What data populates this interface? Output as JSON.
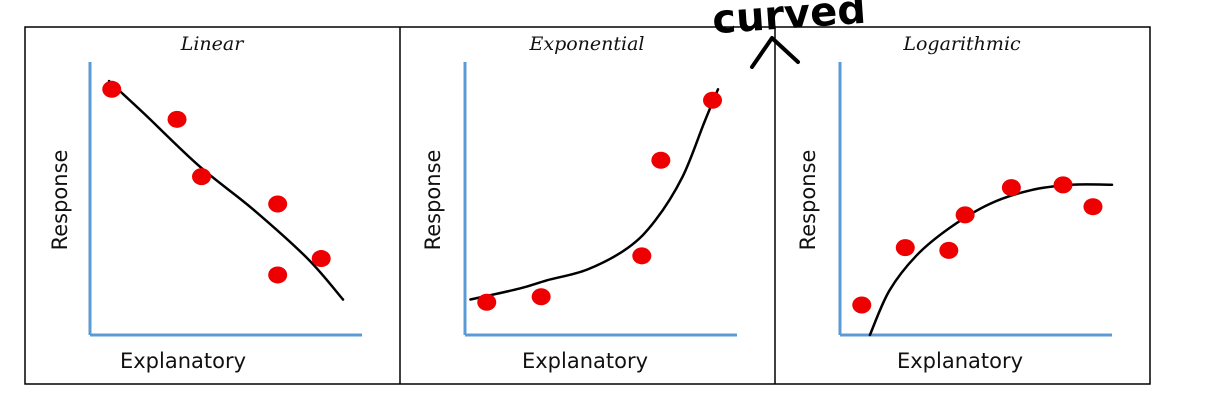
{
  "annotation": {
    "text": "curved"
  },
  "colors": {
    "axis": "#5b9bd5",
    "point": "#ee0000",
    "curve": "#000000",
    "border": "#000000"
  },
  "chart_data": [
    {
      "type": "scatter",
      "title": "Linear",
      "xlabel": "Explanatory",
      "ylabel": "Response",
      "xlim": [
        0,
        10
      ],
      "ylim": [
        0,
        10
      ],
      "points": [
        {
          "x": 0.8,
          "y": 9.0
        },
        {
          "x": 3.2,
          "y": 7.9
        },
        {
          "x": 4.1,
          "y": 5.8
        },
        {
          "x": 6.9,
          "y": 4.8
        },
        {
          "x": 6.9,
          "y": 2.2
        },
        {
          "x": 8.5,
          "y": 2.8
        }
      ],
      "trend": {
        "kind": "linear",
        "points": [
          [
            0.7,
            9.3
          ],
          [
            2.0,
            8.1
          ],
          [
            4.0,
            6.2
          ],
          [
            6.0,
            4.6
          ],
          [
            8.0,
            2.8
          ],
          [
            9.3,
            1.3
          ]
        ]
      }
    },
    {
      "type": "scatter",
      "title": "Exponential",
      "xlabel": "Explanatory",
      "ylabel": "Response",
      "xlim": [
        0,
        10
      ],
      "ylim": [
        0,
        10
      ],
      "points": [
        {
          "x": 0.8,
          "y": 1.2
        },
        {
          "x": 2.8,
          "y": 1.4
        },
        {
          "x": 6.5,
          "y": 2.9
        },
        {
          "x": 7.2,
          "y": 6.4
        },
        {
          "x": 9.1,
          "y": 8.6
        }
      ],
      "trend": {
        "kind": "exponential",
        "points": [
          [
            0.2,
            1.3
          ],
          [
            2.0,
            1.7
          ],
          [
            3.0,
            2.0
          ],
          [
            4.5,
            2.4
          ],
          [
            6.0,
            3.2
          ],
          [
            7.0,
            4.2
          ],
          [
            8.0,
            5.8
          ],
          [
            8.8,
            7.8
          ],
          [
            9.3,
            9.0
          ]
        ]
      }
    },
    {
      "type": "scatter",
      "title": "Logarithmic",
      "xlabel": "Explanatory",
      "ylabel": "Response",
      "xlim": [
        0,
        10
      ],
      "ylim": [
        0,
        10
      ],
      "points": [
        {
          "x": 0.8,
          "y": 1.1
        },
        {
          "x": 2.4,
          "y": 3.2
        },
        {
          "x": 4.0,
          "y": 3.1
        },
        {
          "x": 4.6,
          "y": 4.4
        },
        {
          "x": 6.3,
          "y": 5.4
        },
        {
          "x": 8.2,
          "y": 5.5
        },
        {
          "x": 9.3,
          "y": 4.7
        }
      ],
      "trend": {
        "kind": "logarithmic",
        "points": [
          [
            1.1,
            0.0
          ],
          [
            1.8,
            1.6
          ],
          [
            2.8,
            2.9
          ],
          [
            4.0,
            3.9
          ],
          [
            5.5,
            4.8
          ],
          [
            7.0,
            5.3
          ],
          [
            8.5,
            5.5
          ],
          [
            10.0,
            5.5
          ]
        ]
      }
    }
  ]
}
